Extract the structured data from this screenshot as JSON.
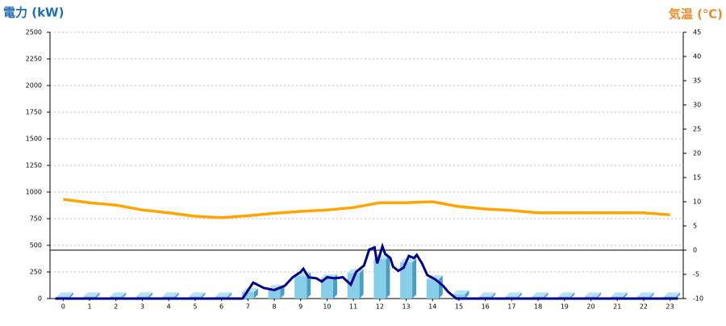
{
  "chart_data": {
    "type": "bar",
    "title": "電力 (kW)",
    "y2_title": "気温 (℃)",
    "categories": [
      "0",
      "1",
      "2",
      "3",
      "4",
      "5",
      "6",
      "7",
      "8",
      "9",
      "10",
      "11",
      "12",
      "13",
      "14",
      "15",
      "16",
      "17",
      "18",
      "19",
      "20",
      "21",
      "22",
      "23"
    ],
    "bars": {
      "color": "#87ceeb",
      "values": [
        20,
        20,
        20,
        20,
        20,
        20,
        20,
        60,
        90,
        210,
        190,
        240,
        370,
        340,
        180,
        40,
        20,
        20,
        20,
        20,
        20,
        20,
        20,
        20
      ]
    },
    "power_line": {
      "color": "#00008b",
      "x": [
        -0.3,
        6.8,
        7.2,
        7.6,
        8,
        8.4,
        8.7,
        9,
        9.1,
        9.3,
        9.6,
        9.8,
        10,
        10.3,
        10.6,
        10.9,
        11.1,
        11.4,
        11.6,
        11.8,
        11.9,
        12.1,
        12.2,
        12.4,
        12.5,
        12.7,
        12.9,
        13.1,
        13.3,
        13.4,
        13.6,
        13.8,
        14.1,
        14.4,
        14.6,
        14.9,
        23.3
      ],
      "values": [
        0,
        0,
        150,
        100,
        80,
        120,
        200,
        250,
        280,
        200,
        190,
        160,
        200,
        190,
        200,
        130,
        250,
        310,
        460,
        480,
        330,
        490,
        420,
        380,
        300,
        260,
        290,
        400,
        380,
        410,
        330,
        220,
        180,
        120,
        60,
        0,
        0
      ]
    },
    "temperature": {
      "color": "#ffa500",
      "axis": "y2",
      "values": [
        10.5,
        9.8,
        9.3,
        8.3,
        7.7,
        7.0,
        6.7,
        7.1,
        7.6,
        8.0,
        8.3,
        8.8,
        9.8,
        9.8,
        10.0,
        9.0,
        8.5,
        8.2,
        7.7,
        7.7,
        7.7,
        7.7,
        7.7,
        7.3
      ]
    },
    "ylim": [
      0,
      2500
    ],
    "yticks": [
      0,
      250,
      500,
      750,
      1000,
      1250,
      1500,
      1750,
      2000,
      2250,
      2500
    ],
    "y2lim": [
      -10,
      45
    ],
    "y2ticks": [
      -10,
      -5,
      0,
      5,
      10,
      15,
      20,
      25,
      30,
      35,
      40,
      45
    ],
    "grid": true
  }
}
